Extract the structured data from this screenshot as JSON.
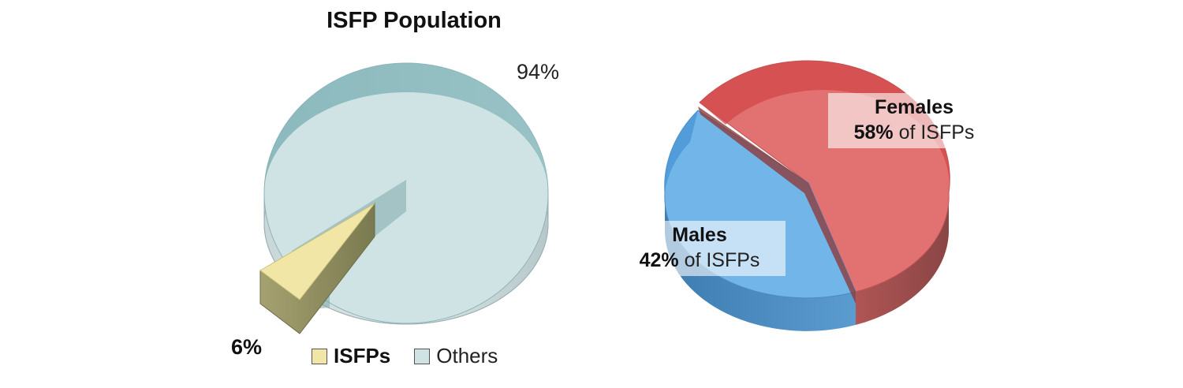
{
  "chart_data": [
    {
      "type": "pie",
      "title": "ISFP Population",
      "slices": [
        {
          "label": "ISFPs",
          "value": 6,
          "display": "6%",
          "color": "#f2e6a6"
        },
        {
          "label": "Others",
          "value": 94,
          "display": "94%",
          "color": "#cfe3e5"
        }
      ],
      "legend": {
        "placement": "bottom",
        "items": [
          "ISFPs",
          "Others"
        ]
      }
    },
    {
      "type": "pie",
      "title": "",
      "slices": [
        {
          "label": "Females",
          "value": 58,
          "pct_text": "58%",
          "suffix": "of ISFPs",
          "color": "#e27272"
        },
        {
          "label": "Males",
          "value": 42,
          "pct_text": "42%",
          "suffix": "of ISFPs",
          "color": "#72b5e8"
        }
      ]
    }
  ]
}
